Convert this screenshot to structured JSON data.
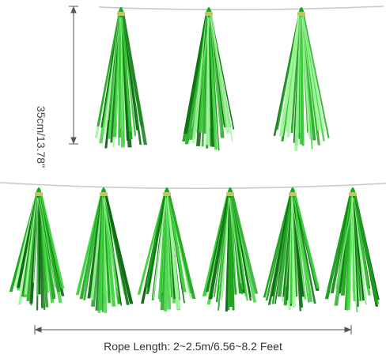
{
  "product": {
    "tassel_length": "35cm/13.78\"",
    "rope_length": "Rope Length: 2~2.5m/6.56~8.2 Feet",
    "tassel_count_top": 3,
    "tassel_count_bottom": 6,
    "colors": {
      "tassel_light": "#3cd23c",
      "tassel_mid": "#1fa51f",
      "tassel_dark": "#0b6a10",
      "tassel_highlight": "#9ff59a",
      "tie": "#c9c060",
      "string": "#c8c8c8",
      "dimension_line": "#555555"
    }
  }
}
